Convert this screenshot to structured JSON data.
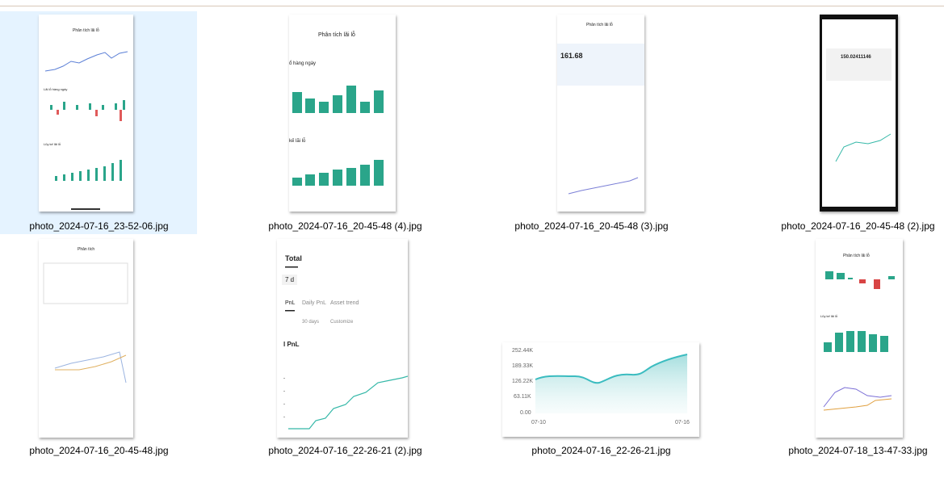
{
  "files": [
    {
      "name": "photo_2024-07-16_23-52-06.jpg",
      "texts": [
        "Phân tích lãi lỗ",
        "Lãi lỗ hàng ngày",
        "Lũy kế lãi lỗ"
      ]
    },
    {
      "name": "photo_2024-07-16_20-45-48 (4).jpg",
      "texts": [
        "Phân tích lãi lỗ",
        "ổ hàng ngày",
        "kế lãi lỗ"
      ]
    },
    {
      "name": "photo_2024-07-16_20-45-48 (3).jpg",
      "texts": [
        "Phân tích lãi lỗ",
        "161.68"
      ]
    },
    {
      "name": "photo_2024-07-16_20-45-48 (2).jpg",
      "texts": [
        "150.02411146"
      ]
    },
    {
      "name": "photo_2024-07-16_20-45-48.jpg",
      "texts": [
        "Phân tích"
      ]
    },
    {
      "name": "photo_2024-07-16_22-26-21 (2).jpg",
      "texts": [
        "Total",
        "7 d",
        "PnL",
        "Daily PnL",
        "Asset trend",
        "30 days",
        "Customize",
        "l PnL"
      ]
    },
    {
      "name": "photo_2024-07-16_22-26-21.jpg",
      "texts": [
        "252.44K",
        "189.33K",
        "126.22K",
        "63.11K",
        "0.00",
        "07-10",
        "07-16"
      ]
    },
    {
      "name": "photo_2024-07-18_13-47-33.jpg",
      "texts": [
        "Phân tích lãi lỗ",
        "Lũy kế lãi lỗ"
      ]
    }
  ]
}
